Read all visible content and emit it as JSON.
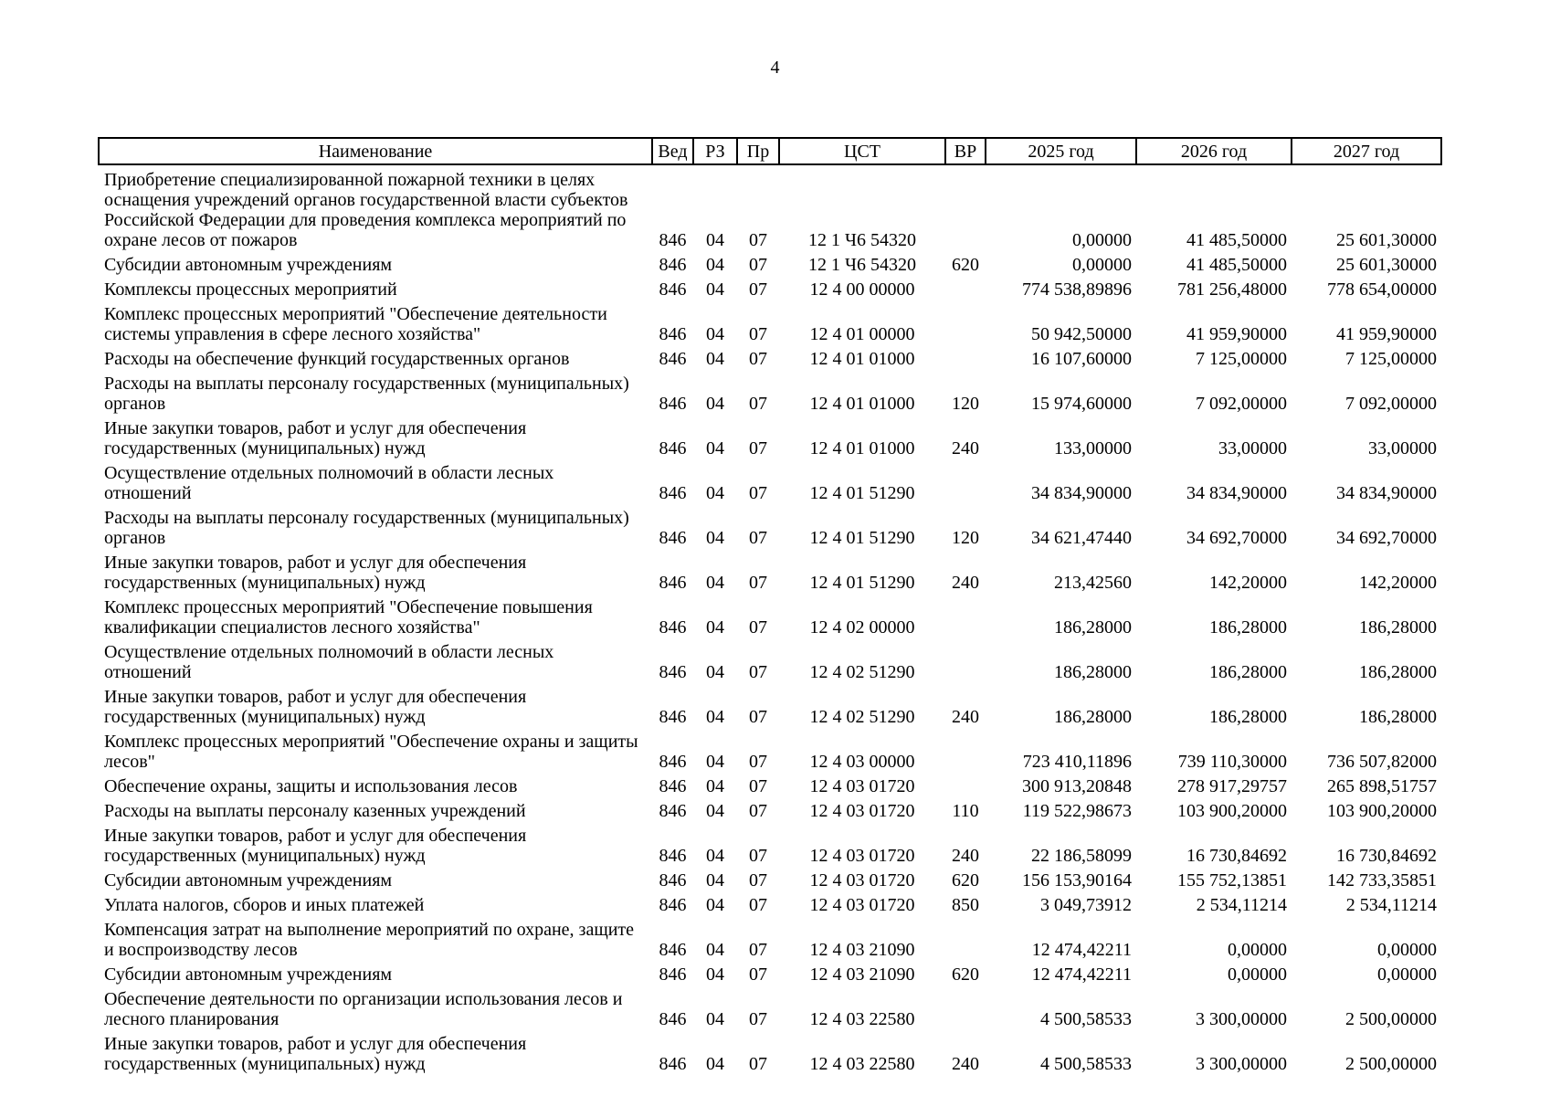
{
  "page": {
    "number": "4"
  },
  "table": {
    "headers": [
      "Наименование",
      "Вед",
      "РЗ",
      "Пр",
      "ЦСТ",
      "ВР",
      "2025 год",
      "2026 год",
      "2027 год"
    ],
    "rows": [
      {
        "name": "Приобретение специализированной пожарной техники в целях оснащения учреждений органов государственной власти субъектов Российской Федерации для проведения комплекса мероприятий по охране лесов от пожаров",
        "ved": "846",
        "rz": "04",
        "pr": "07",
        "cst": "12 1 Ч6 54320",
        "vr": "",
        "y2025": "0,00000",
        "y2026": "41 485,50000",
        "y2027": "25 601,30000"
      },
      {
        "name": "Субсидии автономным учреждениям",
        "ved": "846",
        "rz": "04",
        "pr": "07",
        "cst": "12 1 Ч6 54320",
        "vr": "620",
        "y2025": "0,00000",
        "y2026": "41 485,50000",
        "y2027": "25 601,30000"
      },
      {
        "name": "Комплексы процессных мероприятий",
        "ved": "846",
        "rz": "04",
        "pr": "07",
        "cst": "12 4 00 00000",
        "vr": "",
        "y2025": "774 538,89896",
        "y2026": "781 256,48000",
        "y2027": "778 654,00000"
      },
      {
        "name": "Комплекс процессных мероприятий \"Обеспечение деятельности системы управления в сфере лесного хозяйства\"",
        "ved": "846",
        "rz": "04",
        "pr": "07",
        "cst": "12 4 01 00000",
        "vr": "",
        "y2025": "50 942,50000",
        "y2026": "41 959,90000",
        "y2027": "41 959,90000"
      },
      {
        "name": "Расходы на обеспечение функций государственных органов",
        "ved": "846",
        "rz": "04",
        "pr": "07",
        "cst": "12 4 01 01000",
        "vr": "",
        "y2025": "16 107,60000",
        "y2026": "7 125,00000",
        "y2027": "7 125,00000"
      },
      {
        "name": "Расходы на выплаты персоналу государственных (муниципальных) органов",
        "ved": "846",
        "rz": "04",
        "pr": "07",
        "cst": "12 4 01 01000",
        "vr": "120",
        "y2025": "15 974,60000",
        "y2026": "7 092,00000",
        "y2027": "7 092,00000"
      },
      {
        "name": "Иные закупки товаров, работ и услуг для обеспечения государственных (муниципальных) нужд",
        "ved": "846",
        "rz": "04",
        "pr": "07",
        "cst": "12 4 01 01000",
        "vr": "240",
        "y2025": "133,00000",
        "y2026": "33,00000",
        "y2027": "33,00000"
      },
      {
        "name": "Осуществление отдельных полномочий в области лесных отношений",
        "ved": "846",
        "rz": "04",
        "pr": "07",
        "cst": "12 4 01 51290",
        "vr": "",
        "y2025": "34 834,90000",
        "y2026": "34 834,90000",
        "y2027": "34 834,90000"
      },
      {
        "name": "Расходы на выплаты персоналу государственных (муниципальных) органов",
        "ved": "846",
        "rz": "04",
        "pr": "07",
        "cst": "12 4 01 51290",
        "vr": "120",
        "y2025": "34 621,47440",
        "y2026": "34 692,70000",
        "y2027": "34 692,70000"
      },
      {
        "name": "Иные закупки товаров, работ и услуг для обеспечения государственных (муниципальных) нужд",
        "ved": "846",
        "rz": "04",
        "pr": "07",
        "cst": "12 4 01 51290",
        "vr": "240",
        "y2025": "213,42560",
        "y2026": "142,20000",
        "y2027": "142,20000"
      },
      {
        "name": "Комплекс процессных мероприятий \"Обеспечение повышения квалификации специалистов лесного хозяйства\"",
        "ved": "846",
        "rz": "04",
        "pr": "07",
        "cst": "12 4 02 00000",
        "vr": "",
        "y2025": "186,28000",
        "y2026": "186,28000",
        "y2027": "186,28000"
      },
      {
        "name": "Осуществление отдельных полномочий в области лесных отношений",
        "ved": "846",
        "rz": "04",
        "pr": "07",
        "cst": "12 4 02 51290",
        "vr": "",
        "y2025": "186,28000",
        "y2026": "186,28000",
        "y2027": "186,28000"
      },
      {
        "name": "Иные закупки товаров, работ и услуг для обеспечения государственных (муниципальных) нужд",
        "ved": "846",
        "rz": "04",
        "pr": "07",
        "cst": "12 4 02 51290",
        "vr": "240",
        "y2025": "186,28000",
        "y2026": "186,28000",
        "y2027": "186,28000"
      },
      {
        "name": "Комплекс процессных мероприятий \"Обеспечение охраны и защиты лесов\"",
        "ved": "846",
        "rz": "04",
        "pr": "07",
        "cst": "12 4 03 00000",
        "vr": "",
        "y2025": "723 410,11896",
        "y2026": "739 110,30000",
        "y2027": "736 507,82000"
      },
      {
        "name": "Обеспечение охраны, защиты и использования лесов",
        "ved": "846",
        "rz": "04",
        "pr": "07",
        "cst": "12 4 03 01720",
        "vr": "",
        "y2025": "300 913,20848",
        "y2026": "278 917,29757",
        "y2027": "265 898,51757"
      },
      {
        "name": "Расходы на выплаты персоналу казенных учреждений",
        "ved": "846",
        "rz": "04",
        "pr": "07",
        "cst": "12 4 03 01720",
        "vr": "110",
        "y2025": "119 522,98673",
        "y2026": "103 900,20000",
        "y2027": "103 900,20000"
      },
      {
        "name": "Иные закупки товаров, работ и услуг для обеспечения государственных (муниципальных) нужд",
        "ved": "846",
        "rz": "04",
        "pr": "07",
        "cst": "12 4 03 01720",
        "vr": "240",
        "y2025": "22 186,58099",
        "y2026": "16 730,84692",
        "y2027": "16 730,84692"
      },
      {
        "name": "Субсидии автономным учреждениям",
        "ved": "846",
        "rz": "04",
        "pr": "07",
        "cst": "12 4 03 01720",
        "vr": "620",
        "y2025": "156 153,90164",
        "y2026": "155 752,13851",
        "y2027": "142 733,35851"
      },
      {
        "name": "Уплата налогов, сборов и иных платежей",
        "ved": "846",
        "rz": "04",
        "pr": "07",
        "cst": "12 4 03 01720",
        "vr": "850",
        "y2025": "3 049,73912",
        "y2026": "2 534,11214",
        "y2027": "2 534,11214"
      },
      {
        "name": "Компенсация затрат на выполнение мероприятий по охране, защите и воспроизводству лесов",
        "ved": "846",
        "rz": "04",
        "pr": "07",
        "cst": "12 4 03 21090",
        "vr": "",
        "y2025": "12 474,42211",
        "y2026": "0,00000",
        "y2027": "0,00000"
      },
      {
        "name": "Субсидии автономным учреждениям",
        "ved": "846",
        "rz": "04",
        "pr": "07",
        "cst": "12 4 03 21090",
        "vr": "620",
        "y2025": "12 474,42211",
        "y2026": "0,00000",
        "y2027": "0,00000"
      },
      {
        "name": "Обеспечение деятельности по организации использования лесов и лесного планирования",
        "ved": "846",
        "rz": "04",
        "pr": "07",
        "cst": "12 4 03 22580",
        "vr": "",
        "y2025": "4 500,58533",
        "y2026": "3 300,00000",
        "y2027": "2 500,00000"
      },
      {
        "name": "Иные закупки товаров, работ и услуг для обеспечения государственных (муниципальных) нужд",
        "ved": "846",
        "rz": "04",
        "pr": "07",
        "cst": "12 4 03 22580",
        "vr": "240",
        "y2025": "4 500,58533",
        "y2026": "3 300,00000",
        "y2027": "2 500,00000"
      }
    ]
  }
}
